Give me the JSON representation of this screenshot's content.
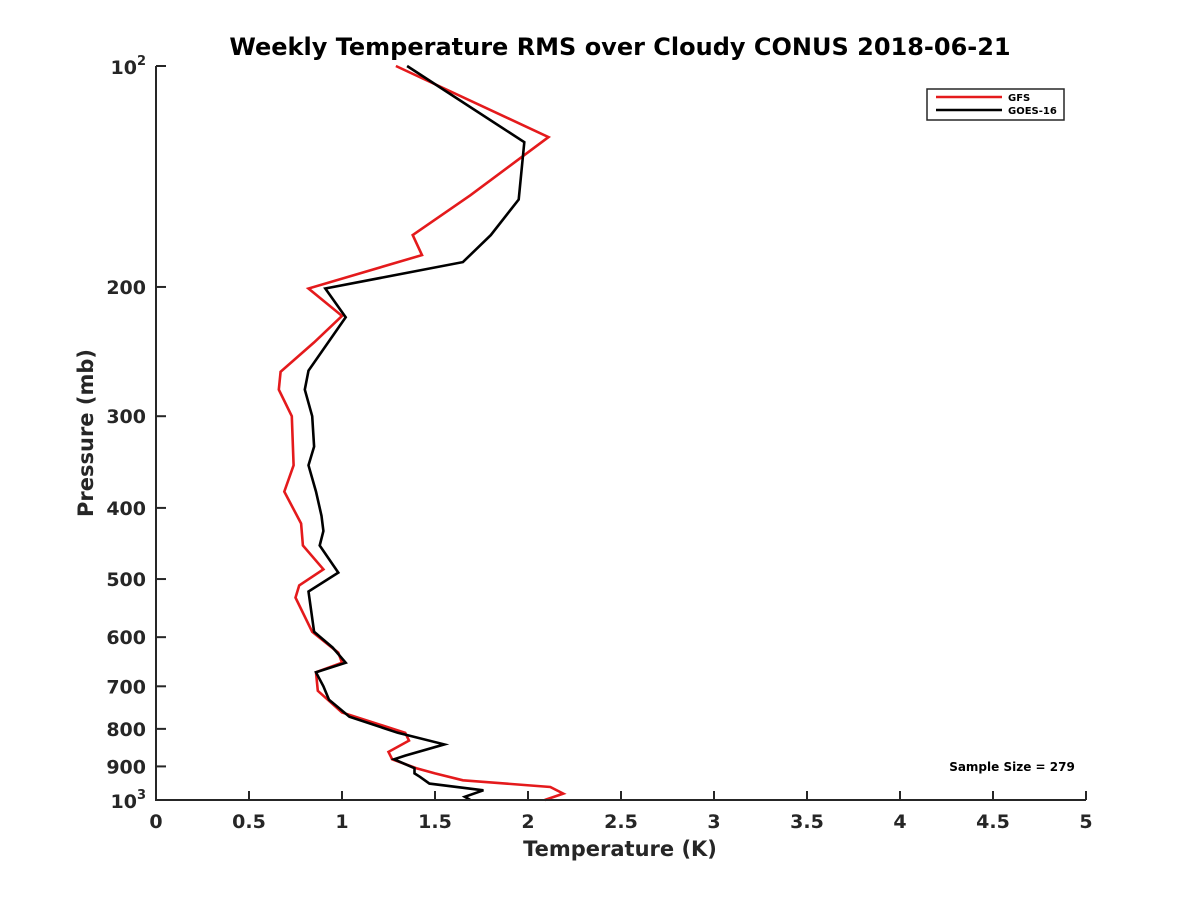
{
  "chart_data": {
    "type": "line",
    "title": "Weekly Temperature RMS over Cloudy CONUS 2018-06-21",
    "xlabel": "Temperature (K)",
    "ylabel": "Pressure (mb)",
    "xlim": [
      0,
      5
    ],
    "ylim": [
      100,
      1000
    ],
    "y_scale": "log",
    "y_inverted": true,
    "grid": false,
    "legend_position": "top-right",
    "x_ticks": [
      "0",
      "0.5",
      "1",
      "1.5",
      "2",
      "2.5",
      "3",
      "3.5",
      "4",
      "4.5",
      "5"
    ],
    "y_ticks": [
      {
        "value": 100,
        "base": "10",
        "exp": "2"
      },
      {
        "value": 200,
        "label": "200"
      },
      {
        "value": 300,
        "label": "300"
      },
      {
        "value": 400,
        "label": "400"
      },
      {
        "value": 500,
        "label": "500"
      },
      {
        "value": 600,
        "label": "600"
      },
      {
        "value": 700,
        "label": "700"
      },
      {
        "value": 800,
        "label": "800"
      },
      {
        "value": 900,
        "label": "900"
      },
      {
        "value": 1000,
        "base": "10",
        "exp": "3"
      }
    ],
    "annotation": "Sample Size = 279",
    "series": [
      {
        "name": "GFS",
        "color": "#e41a1c",
        "points": [
          [
            1.29,
            100
          ],
          [
            2.11,
            125
          ],
          [
            1.69,
            150
          ],
          [
            1.38,
            170
          ],
          [
            1.43,
            181
          ],
          [
            0.82,
            201
          ],
          [
            1.0,
            219
          ],
          [
            0.85,
            238
          ],
          [
            0.67,
            261
          ],
          [
            0.66,
            276
          ],
          [
            0.73,
            300
          ],
          [
            0.74,
            350
          ],
          [
            0.69,
            380
          ],
          [
            0.78,
            420
          ],
          [
            0.79,
            450
          ],
          [
            0.9,
            485
          ],
          [
            0.77,
            510
          ],
          [
            0.75,
            530
          ],
          [
            0.84,
            590
          ],
          [
            0.98,
            630
          ],
          [
            1.0,
            650
          ],
          [
            0.86,
            670
          ],
          [
            0.87,
            710
          ],
          [
            1.0,
            760
          ],
          [
            1.34,
            810
          ],
          [
            1.36,
            830
          ],
          [
            1.25,
            860
          ],
          [
            1.27,
            880
          ],
          [
            1.4,
            905
          ],
          [
            1.5,
            920
          ],
          [
            1.65,
            940
          ],
          [
            2.12,
            960
          ],
          [
            2.19,
            980
          ],
          [
            2.09,
            1000
          ]
        ]
      },
      {
        "name": "GOES-16",
        "color": "#000000",
        "points": [
          [
            1.35,
            100
          ],
          [
            1.98,
            127
          ],
          [
            1.95,
            152
          ],
          [
            1.8,
            170
          ],
          [
            1.65,
            185
          ],
          [
            0.91,
            201
          ],
          [
            1.02,
            220
          ],
          [
            0.82,
            260
          ],
          [
            0.8,
            276
          ],
          [
            0.84,
            300
          ],
          [
            0.85,
            330
          ],
          [
            0.82,
            350
          ],
          [
            0.86,
            380
          ],
          [
            0.89,
            410
          ],
          [
            0.9,
            430
          ],
          [
            0.88,
            450
          ],
          [
            0.98,
            490
          ],
          [
            0.82,
            520
          ],
          [
            0.85,
            590
          ],
          [
            0.95,
            620
          ],
          [
            1.02,
            650
          ],
          [
            0.86,
            670
          ],
          [
            0.9,
            700
          ],
          [
            0.93,
            730
          ],
          [
            1.04,
            770
          ],
          [
            1.3,
            810
          ],
          [
            1.55,
            840
          ],
          [
            1.34,
            870
          ],
          [
            1.28,
            880
          ],
          [
            1.39,
            905
          ],
          [
            1.39,
            920
          ],
          [
            1.42,
            930
          ],
          [
            1.47,
            950
          ],
          [
            1.76,
            970
          ],
          [
            1.66,
            990
          ],
          [
            1.69,
            1000
          ]
        ]
      }
    ]
  }
}
